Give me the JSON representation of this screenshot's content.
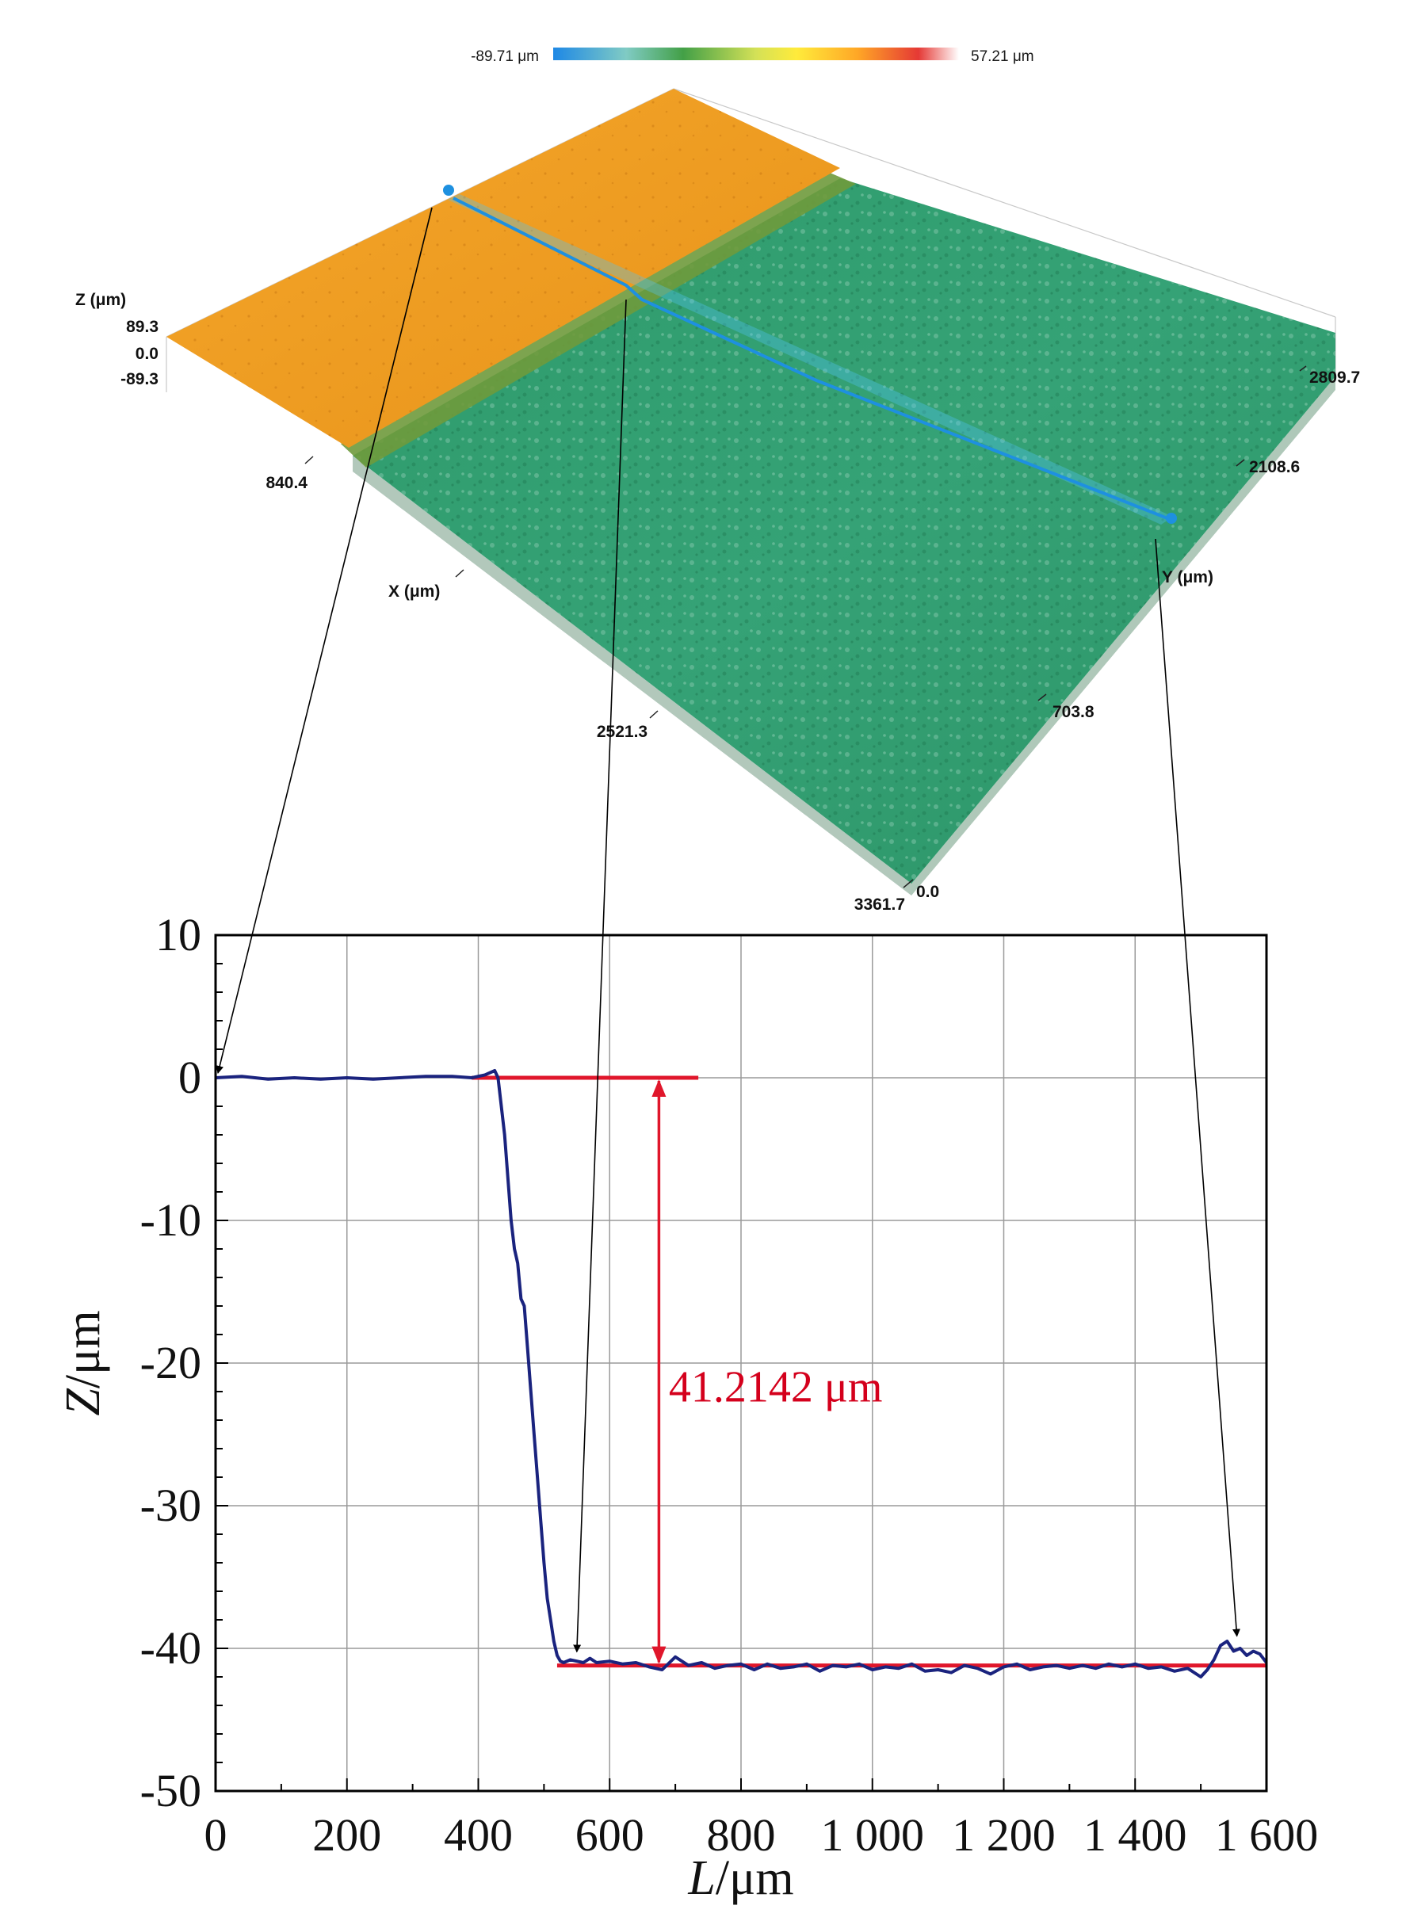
{
  "colors": {
    "profile_line": "#1a237e",
    "reference_lines": "#e0162b",
    "annotation_text": "#d4001c",
    "upper_surface": "#f0a21e",
    "lower_surface": "#2f9e6e",
    "scan_line": "#2196f3",
    "grid": "#9a9a9a"
  },
  "colorbar": {
    "min_label": "-89.71 μm",
    "max_label": "57.21 μm",
    "gradient_stops": [
      "#1e88e5",
      "#80cbc4",
      "#43a047",
      "#d4e157",
      "#ffeb3b",
      "#ffa726",
      "#e53935",
      "#ffffff"
    ]
  },
  "surface3d": {
    "z_axis_title": "Z (μm)",
    "z_ticks": [
      "89.3",
      "0.0",
      "-89.3"
    ],
    "x_axis_title": "X (μm)",
    "x_ticks": [
      "840.4",
      "2521.3",
      "3361.7"
    ],
    "y_axis_title": "Y (μm)",
    "y_ticks": [
      "2809.7",
      "2108.6",
      "703.8",
      "0.0"
    ]
  },
  "chart_data": {
    "type": "line",
    "title": "",
    "xlabel_italic": "L",
    "xlabel_unit": "/μm",
    "ylabel_italic": "Z",
    "ylabel_unit": "/μm",
    "xlim": [
      0,
      1600
    ],
    "ylim": [
      -50,
      10
    ],
    "x_ticks": [
      0,
      200,
      400,
      600,
      800,
      1000,
      1200,
      1400,
      1600
    ],
    "x_tick_labels": [
      "0",
      "200",
      "400",
      "600",
      "800",
      "1 000",
      "1 200",
      "1 400",
      "1 600"
    ],
    "y_ticks": [
      10,
      0,
      -10,
      -20,
      -30,
      -40,
      -50
    ],
    "y_tick_labels": [
      "10",
      "0",
      "-10",
      "-20",
      "-30",
      "-40",
      "-50"
    ],
    "grid": true,
    "series": [
      {
        "x": [
          0,
          40,
          80,
          120,
          160,
          200,
          240,
          280,
          320,
          360,
          390,
          410,
          425,
          430,
          440,
          445,
          450,
          455,
          460,
          465,
          470,
          475,
          480,
          485,
          490,
          495,
          500,
          505,
          510,
          515,
          520,
          525,
          530,
          540,
          550,
          560,
          570,
          580,
          600,
          620,
          640,
          660,
          680,
          700,
          720,
          740,
          760,
          780,
          800,
          820,
          840,
          860,
          880,
          900,
          920,
          940,
          960,
          980,
          1000,
          1020,
          1040,
          1060,
          1080,
          1100,
          1120,
          1140,
          1160,
          1180,
          1200,
          1220,
          1240,
          1260,
          1280,
          1300,
          1320,
          1340,
          1360,
          1380,
          1400,
          1420,
          1440,
          1460,
          1480,
          1500,
          1510,
          1520,
          1530,
          1540,
          1550,
          1560,
          1570,
          1580,
          1590,
          1600
        ],
        "y": [
          0.0,
          0.1,
          -0.1,
          0.0,
          -0.1,
          0.0,
          -0.1,
          0.0,
          0.1,
          0.1,
          0.0,
          0.2,
          0.5,
          0.0,
          -4.0,
          -7.0,
          -10.0,
          -12.0,
          -13.0,
          -15.5,
          -16.0,
          -19.0,
          -22.0,
          -25.0,
          -28.0,
          -31.0,
          -34.0,
          -36.5,
          -38.0,
          -39.5,
          -40.5,
          -40.9,
          -41.0,
          -40.8,
          -40.9,
          -41.0,
          -40.7,
          -41.0,
          -40.9,
          -41.1,
          -41.0,
          -41.3,
          -41.5,
          -40.6,
          -41.2,
          -41.0,
          -41.4,
          -41.2,
          -41.1,
          -41.5,
          -41.1,
          -41.4,
          -41.3,
          -41.1,
          -41.6,
          -41.2,
          -41.3,
          -41.1,
          -41.5,
          -41.3,
          -41.4,
          -41.1,
          -41.6,
          -41.5,
          -41.7,
          -41.2,
          -41.4,
          -41.8,
          -41.3,
          -41.1,
          -41.5,
          -41.3,
          -41.2,
          -41.4,
          -41.2,
          -41.4,
          -41.1,
          -41.3,
          -41.1,
          -41.4,
          -41.3,
          -41.6,
          -41.4,
          -42.0,
          -41.5,
          -40.8,
          -39.8,
          -39.5,
          -40.2,
          -40.0,
          -40.5,
          -40.2,
          -40.4,
          -41.0
        ]
      }
    ],
    "reference_lines": [
      {
        "x0": 390,
        "x1": 735,
        "y": 0.0
      },
      {
        "x0": 520,
        "x1": 1600,
        "y": -41.2
      }
    ],
    "step_arrow": {
      "x": 675,
      "y_top": 0.0,
      "y_bottom": -41.2
    },
    "annotation": "41.2142 μm",
    "annotation_pos": {
      "x": 690,
      "y": -21.7
    },
    "pointer_targets": [
      {
        "x": 0,
        "y": 0.0
      },
      {
        "x": 550,
        "y": -40.8
      },
      {
        "x": 1555,
        "y": -39.7
      }
    ]
  }
}
